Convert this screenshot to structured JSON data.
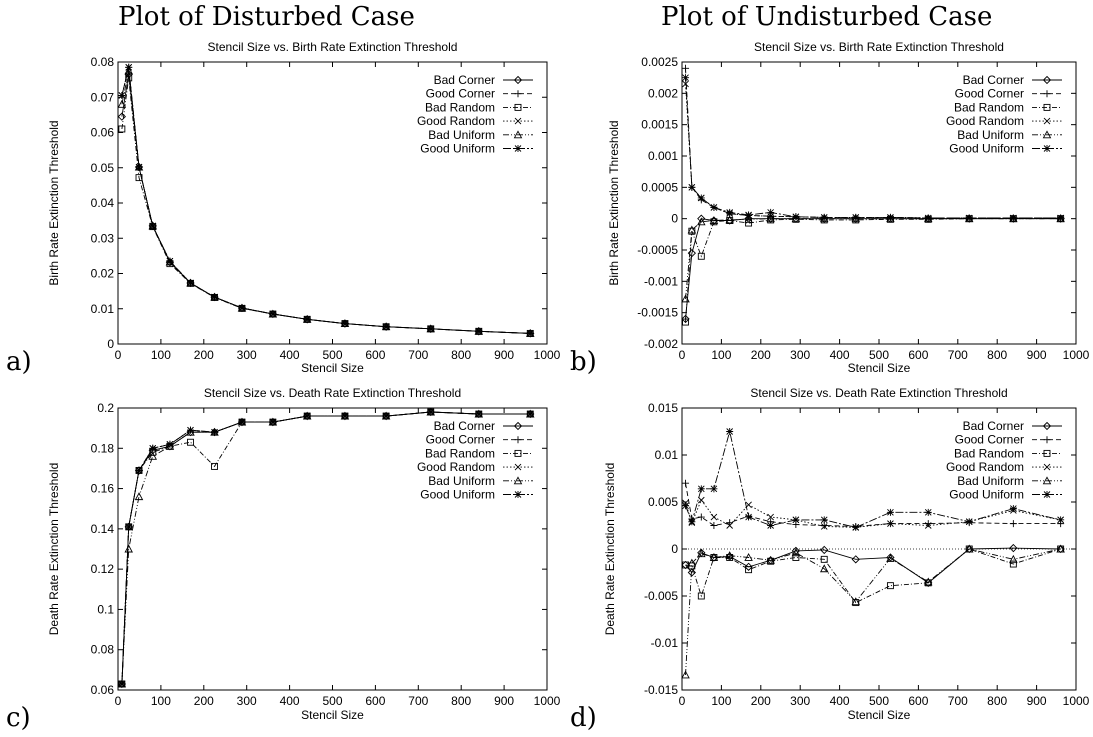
{
  "headings": {
    "disturbed": "Plot of Disturbed Case",
    "undisturbed": "Plot of Undisturbed Case"
  },
  "panel_letters": [
    "a)",
    "b)",
    "c)",
    "d)"
  ],
  "chart_data": [
    {
      "id": "a",
      "type": "line",
      "title": "Stencil Size vs. Birth Rate Extinction Threshold",
      "xlabel": "Stencil Size",
      "ylabel": "Birth Rate Extinction Threshold",
      "xlim": [
        0,
        1000
      ],
      "ylim": [
        0,
        0.08
      ],
      "xticks": [
        "0",
        "100",
        "200",
        "300",
        "400",
        "500",
        "600",
        "700",
        "800",
        "900",
        "1000"
      ],
      "yticks": [
        "0",
        "0.01",
        "0.02",
        "0.03",
        "0.04",
        "0.05",
        "0.06",
        "0.07",
        "0.08"
      ],
      "legend_position": "top-right",
      "grid": false,
      "x": [
        9,
        25,
        49,
        81,
        121,
        169,
        225,
        289,
        361,
        441,
        529,
        625,
        729,
        841,
        961
      ],
      "series": [
        {
          "name": "Bad Corner",
          "marker": "diamond",
          "dash": "solid",
          "values": [
            0.0645,
            0.0765,
            0.0502,
            0.0335,
            0.0232,
            0.0173,
            0.0133,
            0.0102,
            0.0085,
            0.007,
            0.0058,
            0.0049,
            0.0043,
            0.0036,
            0.003
          ]
        },
        {
          "name": "Good Corner",
          "marker": "plus",
          "dash": "dashed",
          "values": [
            0.0705,
            0.0785,
            0.0502,
            0.0335,
            0.0235,
            0.0173,
            0.0133,
            0.0102,
            0.0085,
            0.007,
            0.0058,
            0.0049,
            0.0043,
            0.0036,
            0.003
          ]
        },
        {
          "name": "Bad Random",
          "marker": "square",
          "dash": "dashdot",
          "values": [
            0.061,
            0.0755,
            0.0472,
            0.0333,
            0.0228,
            0.0172,
            0.0132,
            0.0101,
            0.0085,
            0.007,
            0.0058,
            0.0049,
            0.0043,
            0.0036,
            0.003
          ]
        },
        {
          "name": "Good Random",
          "marker": "cross",
          "dash": "dotted",
          "values": [
            0.0705,
            0.0785,
            0.0502,
            0.0335,
            0.0235,
            0.0173,
            0.0133,
            0.0102,
            0.0085,
            0.007,
            0.0058,
            0.0049,
            0.0043,
            0.0036,
            0.003
          ]
        },
        {
          "name": "Bad Uniform",
          "marker": "triangle",
          "dash": "dashdot2",
          "values": [
            0.068,
            0.0775,
            0.0502,
            0.0335,
            0.0233,
            0.0173,
            0.0133,
            0.0102,
            0.0085,
            0.007,
            0.0058,
            0.0049,
            0.0043,
            0.0036,
            0.003
          ]
        },
        {
          "name": "Good Uniform",
          "marker": "star",
          "dash": "dashdot3",
          "values": [
            0.0705,
            0.0785,
            0.0502,
            0.0335,
            0.0235,
            0.0173,
            0.0133,
            0.0102,
            0.0085,
            0.007,
            0.0058,
            0.0049,
            0.0043,
            0.0036,
            0.003
          ]
        }
      ]
    },
    {
      "id": "b",
      "type": "line",
      "title": "Stencil Size vs. Birth Rate Extinction Threshold",
      "xlabel": "Stencil Size",
      "ylabel": "Birth Rate Extinction Threshold",
      "xlim": [
        0,
        1000
      ],
      "ylim": [
        -0.002,
        0.0025
      ],
      "xticks": [
        "0",
        "100",
        "200",
        "300",
        "400",
        "500",
        "600",
        "700",
        "800",
        "900",
        "1000"
      ],
      "yticks": [
        "-0.002",
        "-0.0015",
        "-0.001",
        "-0.0005",
        "0",
        "0.0005",
        "0.001",
        "0.0015",
        "0.002",
        "0.0025"
      ],
      "legend_position": "top-right",
      "grid": false,
      "x": [
        9,
        25,
        49,
        81,
        121,
        169,
        225,
        289,
        361,
        441,
        529,
        625,
        729,
        841,
        961
      ],
      "series": [
        {
          "name": "Bad Corner",
          "marker": "diamond",
          "dash": "solid",
          "values": [
            -0.0016,
            -0.00055,
            0,
            -3e-05,
            -3e-05,
            0,
            0,
            0,
            0,
            0,
            0,
            0,
            0,
            0,
            0
          ]
        },
        {
          "name": "Good Corner",
          "marker": "plus",
          "dash": "dashed",
          "values": [
            0.0024,
            0.0005,
            0.0003,
            0.00018,
            8e-05,
            5e-05,
            4e-05,
            3e-05,
            2e-05,
            2e-05,
            2e-05,
            1e-05,
            1e-05,
            1e-05,
            1e-05
          ]
        },
        {
          "name": "Bad Random",
          "marker": "square",
          "dash": "dashdot",
          "values": [
            -0.00165,
            -0.0002,
            -0.0006,
            -5e-05,
            -3e-05,
            -7e-05,
            -2e-05,
            -1e-05,
            -2e-05,
            -2e-05,
            -1e-05,
            -1e-05,
            0,
            0,
            0
          ]
        },
        {
          "name": "Good Random",
          "marker": "cross",
          "dash": "dotted",
          "values": [
            0.00215,
            0.0005,
            0.00033,
            0.00018,
            8e-05,
            5e-05,
            4e-05,
            3e-05,
            2e-05,
            2e-05,
            2e-05,
            1e-05,
            1e-05,
            1e-05,
            1e-05
          ]
        },
        {
          "name": "Bad Uniform",
          "marker": "triangle",
          "dash": "dashdot2",
          "values": [
            -0.00128,
            -0.00018,
            -5e-05,
            -3e-05,
            -2e-05,
            -1e-05,
            0,
            0,
            0,
            0,
            0,
            0,
            0,
            0,
            0
          ]
        },
        {
          "name": "Good Uniform",
          "marker": "star",
          "dash": "dashdot3",
          "values": [
            0.00225,
            0.0005,
            0.00033,
            0.00018,
            0.0001,
            6e-05,
            0.0001,
            3e-05,
            2e-05,
            2e-05,
            2e-05,
            1e-05,
            1e-05,
            1e-05,
            1e-05
          ]
        }
      ]
    },
    {
      "id": "c",
      "type": "line",
      "title": "Stencil Size vs. Death Rate Extinction Threshold",
      "xlabel": "Stencil Size",
      "ylabel": "Death Rate Extinction Threshold",
      "xlim": [
        0,
        1000
      ],
      "ylim": [
        0.06,
        0.2
      ],
      "xticks": [
        "0",
        "100",
        "200",
        "300",
        "400",
        "500",
        "600",
        "700",
        "800",
        "900",
        "1000"
      ],
      "yticks": [
        "0.06",
        "0.08",
        "0.1",
        "0.12",
        "0.14",
        "0.16",
        "0.18",
        "0.2"
      ],
      "legend_position": "top-right",
      "grid": false,
      "x": [
        9,
        25,
        49,
        81,
        121,
        169,
        225,
        289,
        361,
        441,
        529,
        625,
        729,
        841,
        961
      ],
      "series": [
        {
          "name": "Bad Corner",
          "marker": "diamond",
          "dash": "solid",
          "values": [
            0.063,
            0.141,
            0.169,
            0.179,
            0.181,
            0.188,
            0.188,
            0.193,
            0.193,
            0.196,
            0.196,
            0.196,
            0.198,
            0.197,
            0.197
          ]
        },
        {
          "name": "Good Corner",
          "marker": "plus",
          "dash": "dashed",
          "values": [
            0.063,
            0.141,
            0.169,
            0.18,
            0.182,
            0.189,
            0.188,
            0.193,
            0.193,
            0.196,
            0.196,
            0.196,
            0.198,
            0.197,
            0.197
          ]
        },
        {
          "name": "Bad Random",
          "marker": "square",
          "dash": "dashdot",
          "values": [
            0.063,
            0.141,
            0.169,
            0.178,
            0.181,
            0.183,
            0.171,
            0.193,
            0.193,
            0.196,
            0.196,
            0.196,
            0.198,
            0.197,
            0.197
          ]
        },
        {
          "name": "Good Random",
          "marker": "cross",
          "dash": "dotted",
          "values": [
            0.063,
            0.141,
            0.169,
            0.18,
            0.182,
            0.189,
            0.188,
            0.193,
            0.193,
            0.196,
            0.196,
            0.196,
            0.198,
            0.197,
            0.197
          ]
        },
        {
          "name": "Bad Uniform",
          "marker": "triangle",
          "dash": "dashdot2",
          "values": [
            0.063,
            0.13,
            0.156,
            0.176,
            0.181,
            0.188,
            0.188,
            0.193,
            0.193,
            0.196,
            0.196,
            0.196,
            0.198,
            0.197,
            0.197
          ]
        },
        {
          "name": "Good Uniform",
          "marker": "star",
          "dash": "dashdot3",
          "values": [
            0.063,
            0.141,
            0.169,
            0.18,
            0.182,
            0.189,
            0.188,
            0.193,
            0.193,
            0.196,
            0.196,
            0.196,
            0.198,
            0.197,
            0.197
          ]
        }
      ]
    },
    {
      "id": "d",
      "type": "line",
      "title": "Stencil Size vs. Death Rate Extinction Threshold",
      "xlabel": "Stencil Size",
      "ylabel": "Death Rate Extinction Threshold",
      "xlim": [
        0,
        1000
      ],
      "ylim": [
        -0.015,
        0.015
      ],
      "xticks": [
        "0",
        "100",
        "200",
        "300",
        "400",
        "500",
        "600",
        "700",
        "800",
        "900",
        "1000"
      ],
      "yticks": [
        "-0.015",
        "-0.01",
        "-0.005",
        "0",
        "0.005",
        "0.01",
        "0.015"
      ],
      "legend_position": "top-right",
      "grid": false,
      "zero_line": true,
      "x": [
        9,
        25,
        49,
        81,
        121,
        169,
        225,
        289,
        361,
        441,
        529,
        625,
        729,
        841,
        961
      ],
      "series": [
        {
          "name": "Bad Corner",
          "marker": "diamond",
          "dash": "solid",
          "values": [
            -0.0017,
            -0.0025,
            -0.0004,
            -0.0009,
            -0.0008,
            -0.0019,
            -0.0012,
            -0.0002,
            -0.0001,
            -0.0011,
            -0.0009,
            -0.0036,
            0,
            0.0001,
            0
          ]
        },
        {
          "name": "Good Corner",
          "marker": "plus",
          "dash": "dashed",
          "values": [
            0.007,
            0.0032,
            0.0034,
            0.0025,
            0.0028,
            0.0035,
            0.0029,
            0.0026,
            0.0025,
            0.0024,
            0.0027,
            0.0027,
            0.0028,
            0.0027,
            0.0027
          ]
        },
        {
          "name": "Bad Random",
          "marker": "square",
          "dash": "dashdot",
          "values": [
            -0.0017,
            -0.0018,
            -0.005,
            -0.0009,
            -0.0009,
            -0.0022,
            -0.0013,
            -0.0009,
            -0.0011,
            -0.0057,
            -0.0039,
            -0.0036,
            0,
            -0.0016,
            0
          ]
        },
        {
          "name": "Good Random",
          "marker": "cross",
          "dash": "dotted",
          "values": [
            0.0049,
            0.0028,
            0.0052,
            0.0034,
            0.0025,
            0.0047,
            0.0034,
            0.0031,
            0.0024,
            0.0023,
            0.0027,
            0.0025,
            0.0029,
            0.0041,
            0.0031
          ]
        },
        {
          "name": "Bad Uniform",
          "marker": "triangle",
          "dash": "dashdot2",
          "values": [
            -0.0134,
            -0.0015,
            -0.0005,
            -0.0009,
            -0.0007,
            -0.0009,
            -0.0012,
            -0.0004,
            -0.0021,
            -0.0056,
            -0.001,
            -0.0035,
            0,
            -0.0011,
            0
          ]
        },
        {
          "name": "Good Uniform",
          "marker": "star",
          "dash": "dashdot3",
          "values": [
            0.0046,
            0.0029,
            0.0064,
            0.0064,
            0.0125,
            0.0034,
            0.0025,
            0.0031,
            0.0031,
            0.0023,
            0.0039,
            0.0039,
            0.0029,
            0.0043,
            0.0031
          ]
        }
      ]
    }
  ]
}
